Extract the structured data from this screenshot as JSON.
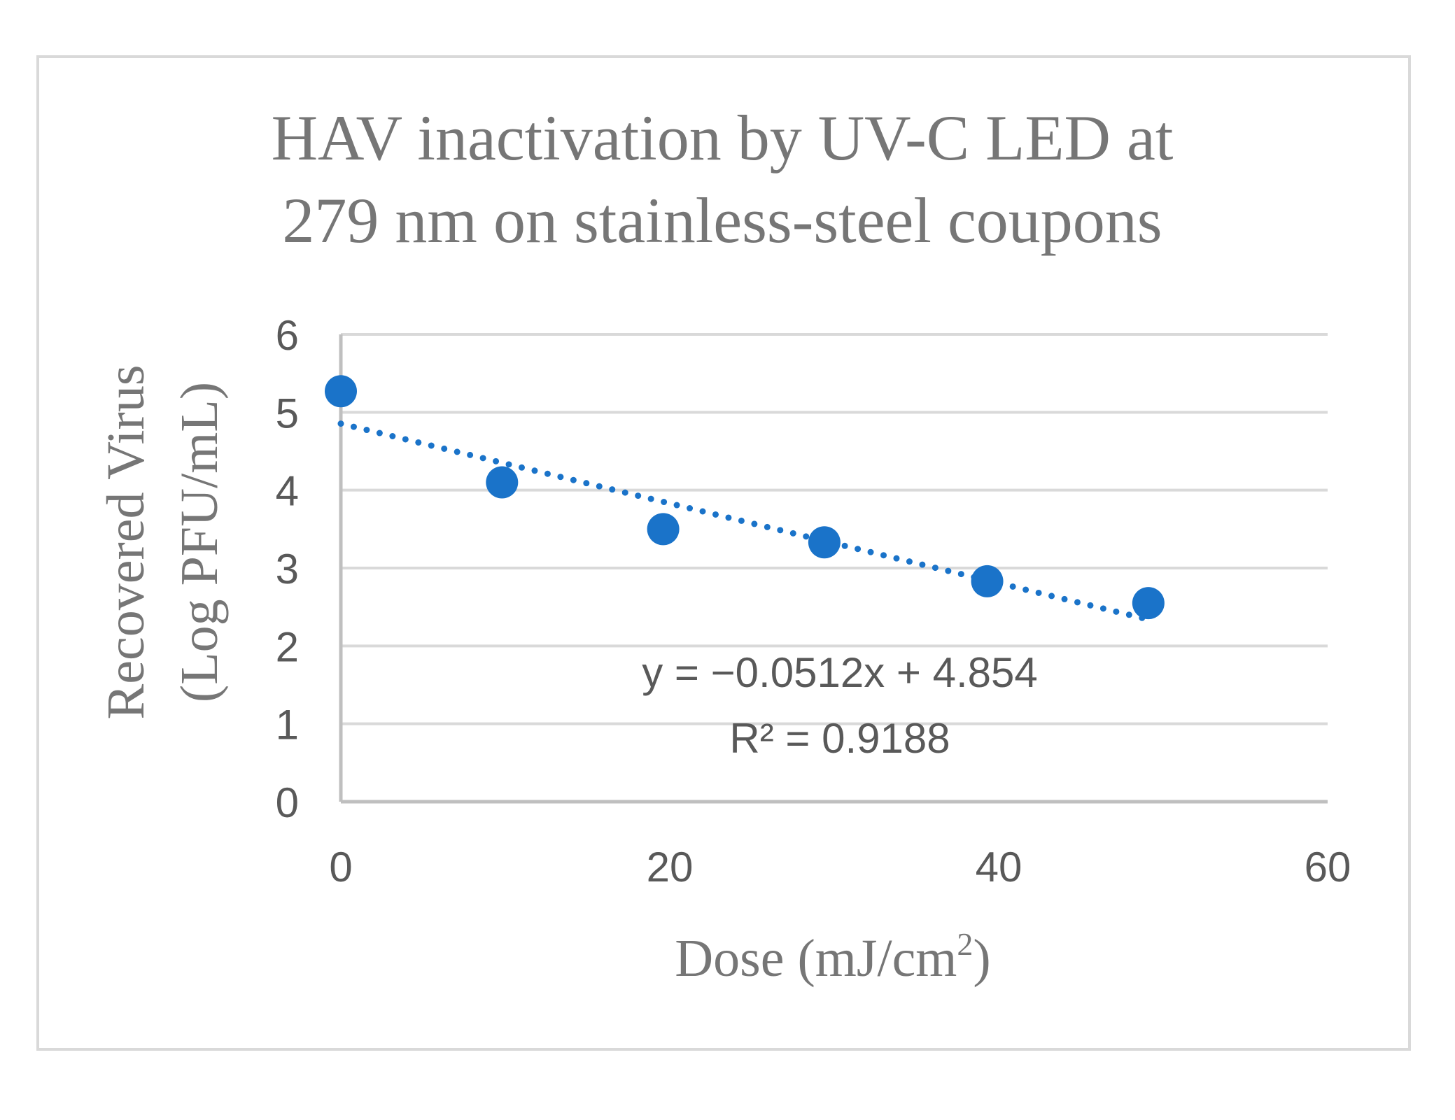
{
  "chart_data": {
    "type": "scatter",
    "title_lines": [
      "HAV inactivation by UV-C LED at",
      "279 nm on stainless-steel coupons"
    ],
    "xlabel": "Dose (mJ/cm",
    "xlabel_sup": "2",
    "xlabel_close": ")",
    "ylabel_lines": [
      "Recovered Virus",
      "(Log PFU/mL)"
    ],
    "xlim": [
      0,
      60
    ],
    "ylim": [
      0,
      6
    ],
    "x_ticks": [
      "0",
      "20",
      "40",
      "60"
    ],
    "y_ticks": [
      "0",
      "1",
      "2",
      "3",
      "4",
      "5",
      "6"
    ],
    "grid": true,
    "series": [
      {
        "name": "Recovered virus",
        "x": [
          0,
          9.8,
          19.6,
          29.4,
          39.3,
          49.1
        ],
        "y": [
          5.27,
          4.1,
          3.5,
          3.33,
          2.83,
          2.55
        ]
      }
    ],
    "trendline": {
      "type": "linear",
      "slope": -0.0512,
      "intercept": 4.854,
      "x_range": [
        0,
        49.1
      ],
      "equation": "y = −0.0512x + 4.854",
      "r2_label": "R² = 0.9188"
    },
    "colors": {
      "marker": "#1a73c9",
      "grid": "#d9d9d9",
      "axis": "#bfbfbf",
      "text": "#767676",
      "tick_text": "#595959"
    }
  }
}
